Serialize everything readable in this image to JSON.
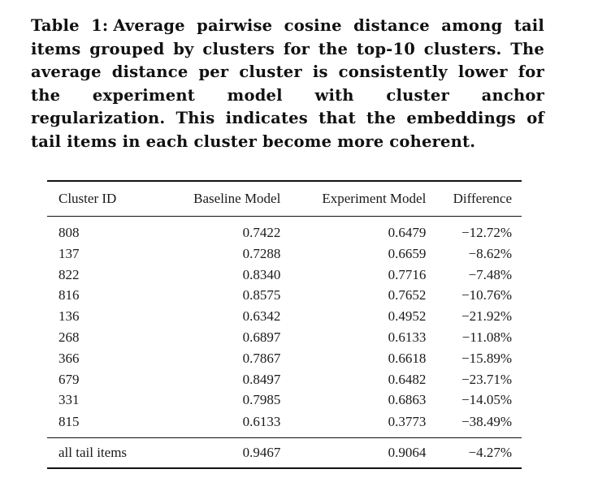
{
  "caption": {
    "label": "Table 1:",
    "text": "Average pairwise cosine distance among tail items grouped by clusters for the top-10 clusters. The average distance per cluster is consistently lower for the experiment model with cluster anchor regularization. This indicates that the embeddings of tail items in each cluster become more coherent."
  },
  "table": {
    "headers": [
      "Cluster ID",
      "Baseline Model",
      "Experiment Model",
      "Difference"
    ],
    "rows": [
      [
        "808",
        "0.7422",
        "0.6479",
        "−12.72%"
      ],
      [
        "137",
        "0.7288",
        "0.6659",
        "−8.62%"
      ],
      [
        "822",
        "0.8340",
        "0.7716",
        "−7.48%"
      ],
      [
        "816",
        "0.8575",
        "0.7652",
        "−10.76%"
      ],
      [
        "136",
        "0.6342",
        "0.4952",
        "−21.92%"
      ],
      [
        "268",
        "0.6897",
        "0.6133",
        "−11.08%"
      ],
      [
        "366",
        "0.7867",
        "0.6618",
        "−15.89%"
      ],
      [
        "679",
        "0.8497",
        "0.6482",
        "−23.71%"
      ],
      [
        "331",
        "0.7985",
        "0.6863",
        "−14.05%"
      ],
      [
        "815",
        "0.6133",
        "0.3773",
        "−38.49%"
      ]
    ],
    "footer": [
      "all tail items",
      "0.9467",
      "0.9064",
      "−4.27%"
    ]
  }
}
